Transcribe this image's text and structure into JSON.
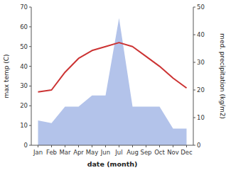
{
  "chart_data": {
    "type": "line",
    "categories": [
      "Jan",
      "Feb",
      "Mar",
      "Apr",
      "May",
      "Jun",
      "Jul",
      "Aug",
      "Sep",
      "Oct",
      "Nov",
      "Dec"
    ],
    "series": [
      {
        "type": "area",
        "color": "#b3c3ea",
        "axis": "y2",
        "values": [
          9,
          8,
          14,
          14,
          18,
          18,
          46,
          14,
          14,
          14,
          6,
          6
        ]
      },
      {
        "type": "line",
        "color": "#cc3333",
        "values": [
          27,
          28,
          37,
          44,
          48,
          50,
          52,
          50,
          45,
          40,
          34,
          29
        ]
      }
    ],
    "xlabel": "date (month)",
    "ylabel": "max temp (C)",
    "y2label": "med. precipitation (kg/m2)",
    "ylim": [
      0,
      70
    ],
    "yticks": [
      0,
      10,
      20,
      30,
      40,
      50,
      60,
      70
    ],
    "y2lim": [
      0,
      50
    ],
    "y2ticks": [
      0,
      10,
      20,
      30,
      40,
      50
    ],
    "grid": false
  }
}
